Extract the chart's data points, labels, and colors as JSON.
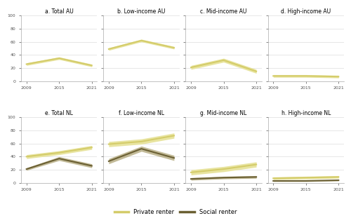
{
  "years": [
    2009,
    2015,
    2021
  ],
  "ylim": [
    0,
    100
  ],
  "yticks": [
    0,
    20,
    40,
    60,
    80,
    100
  ],
  "xticks": [
    2009,
    2015,
    2021
  ],
  "private_color": "#d4cc6a",
  "private_fill_color": "#e8e4a0",
  "social_color": "#6b6033",
  "social_fill_color": "#9c8f55",
  "panels": [
    {
      "title": "a. Total AU",
      "private_mean": [
        26,
        35,
        24
      ],
      "private_ci_low": [
        24,
        33,
        22
      ],
      "private_ci_high": [
        28,
        37,
        26
      ],
      "social_mean": null,
      "social_ci_low": null,
      "social_ci_high": null
    },
    {
      "title": "b. Low-income AU",
      "private_mean": [
        49,
        62,
        51
      ],
      "private_ci_low": [
        47,
        60,
        49
      ],
      "private_ci_high": [
        51,
        64,
        53
      ],
      "social_mean": null,
      "social_ci_low": null,
      "social_ci_high": null
    },
    {
      "title": "c. Mid-income AU",
      "private_mean": [
        21,
        32,
        15
      ],
      "private_ci_low": [
        18,
        29,
        12
      ],
      "private_ci_high": [
        24,
        35,
        18
      ],
      "social_mean": null,
      "social_ci_low": null,
      "social_ci_high": null
    },
    {
      "title": "d. High-income AU",
      "private_mean": [
        8,
        8,
        7
      ],
      "private_ci_low": [
        6,
        6,
        5
      ],
      "private_ci_high": [
        10,
        10,
        9
      ],
      "social_mean": null,
      "social_ci_low": null,
      "social_ci_high": null
    },
    {
      "title": "e. Total NL",
      "private_mean": [
        40,
        46,
        54
      ],
      "private_ci_low": [
        37,
        43,
        51
      ],
      "private_ci_high": [
        43,
        49,
        57
      ],
      "social_mean": [
        21,
        37,
        26
      ],
      "social_ci_low": [
        19,
        34,
        23
      ],
      "social_ci_high": [
        23,
        40,
        29
      ]
    },
    {
      "title": "f. Low-income NL",
      "private_mean": [
        59,
        63,
        72
      ],
      "private_ci_low": [
        55,
        59,
        68
      ],
      "private_ci_high": [
        63,
        67,
        76
      ],
      "social_mean": [
        33,
        52,
        38
      ],
      "social_ci_low": [
        29,
        48,
        34
      ],
      "social_ci_high": [
        37,
        56,
        42
      ]
    },
    {
      "title": "g. Mid-income NL",
      "private_mean": [
        16,
        21,
        28
      ],
      "private_ci_low": [
        12,
        17,
        24
      ],
      "private_ci_high": [
        20,
        25,
        32
      ],
      "social_mean": [
        6,
        8,
        9
      ],
      "social_ci_low": [
        4,
        6,
        7
      ],
      "social_ci_high": [
        8,
        10,
        11
      ]
    },
    {
      "title": "h. High-income NL",
      "private_mean": [
        7,
        8,
        9
      ],
      "private_ci_low": [
        5,
        6,
        7
      ],
      "private_ci_high": [
        9,
        10,
        11
      ],
      "social_mean": [
        3,
        3,
        4
      ],
      "social_ci_low": [
        2,
        2,
        3
      ],
      "social_ci_high": [
        4,
        4,
        5
      ]
    }
  ],
  "legend_labels": [
    "Private renter",
    "Social renter"
  ]
}
